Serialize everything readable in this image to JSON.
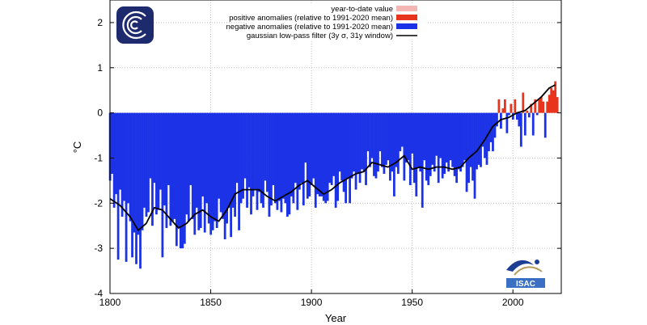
{
  "chart_data": {
    "type": "bar",
    "xlabel": "Year",
    "ylabel": "°C",
    "xlim": [
      1800,
      2024
    ],
    "ylim": [
      -4,
      2.5
    ],
    "x_ticks": [
      1800,
      1850,
      1900,
      1950,
      2000
    ],
    "y_ticks": [
      -4,
      -3,
      -2,
      -1,
      0,
      1,
      2
    ],
    "grid": true,
    "legend_position": "top-right",
    "legend": [
      {
        "label": "year-to-date value",
        "color": "#f4b6b2",
        "kind": "box"
      },
      {
        "label": "positive anomalies (relative to 1991-2020 mean)",
        "color": "#e8341c",
        "kind": "box"
      },
      {
        "label": "negative anomalies (relative to 1991-2020 mean)",
        "color": "#1c32e6",
        "kind": "box"
      },
      {
        "label": "gaussian low-pass filter (3y σ, 31y window)",
        "color": "#000000",
        "kind": "line"
      }
    ],
    "colors": {
      "positive": "#e8341c",
      "negative": "#1c32e6",
      "ytd": "#f4b6b2",
      "smooth": "#000000",
      "grid": "#b4b4b4"
    },
    "years": [
      1800,
      1801,
      1802,
      1803,
      1804,
      1805,
      1806,
      1807,
      1808,
      1809,
      1810,
      1811,
      1812,
      1813,
      1814,
      1815,
      1816,
      1817,
      1818,
      1819,
      1820,
      1821,
      1822,
      1823,
      1824,
      1825,
      1826,
      1827,
      1828,
      1829,
      1830,
      1831,
      1832,
      1833,
      1834,
      1835,
      1836,
      1837,
      1838,
      1839,
      1840,
      1841,
      1842,
      1843,
      1844,
      1845,
      1846,
      1847,
      1848,
      1849,
      1850,
      1851,
      1852,
      1853,
      1854,
      1855,
      1856,
      1857,
      1858,
      1859,
      1860,
      1861,
      1862,
      1863,
      1864,
      1865,
      1866,
      1867,
      1868,
      1869,
      1870,
      1871,
      1872,
      1873,
      1874,
      1875,
      1876,
      1877,
      1878,
      1879,
      1880,
      1881,
      1882,
      1883,
      1884,
      1885,
      1886,
      1887,
      1888,
      1889,
      1890,
      1891,
      1892,
      1893,
      1894,
      1895,
      1896,
      1897,
      1898,
      1899,
      1900,
      1901,
      1902,
      1903,
      1904,
      1905,
      1906,
      1907,
      1908,
      1909,
      1910,
      1911,
      1912,
      1913,
      1914,
      1915,
      1916,
      1917,
      1918,
      1919,
      1920,
      1921,
      1922,
      1923,
      1924,
      1925,
      1926,
      1927,
      1928,
      1929,
      1930,
      1931,
      1932,
      1933,
      1934,
      1935,
      1936,
      1937,
      1938,
      1939,
      1940,
      1941,
      1942,
      1943,
      1944,
      1945,
      1946,
      1947,
      1948,
      1949,
      1950,
      1951,
      1952,
      1953,
      1954,
      1955,
      1956,
      1957,
      1958,
      1959,
      1960,
      1961,
      1962,
      1963,
      1964,
      1965,
      1966,
      1967,
      1968,
      1969,
      1970,
      1971,
      1972,
      1973,
      1974,
      1975,
      1976,
      1977,
      1978,
      1979,
      1980,
      1981,
      1982,
      1983,
      1984,
      1985,
      1986,
      1987,
      1988,
      1989,
      1990,
      1991,
      1992,
      1993,
      1994,
      1995,
      1996,
      1997,
      1998,
      1999,
      2000,
      2001,
      2002,
      2003,
      2004,
      2005,
      2006,
      2007,
      2008,
      2009,
      2010,
      2011,
      2012,
      2013,
      2014,
      2015,
      2016,
      2017,
      2018,
      2019,
      2020,
      2021,
      2022
    ],
    "anomalies": [
      -1.5,
      -1.35,
      -2.1,
      -1.8,
      -3.25,
      -1.7,
      -2.3,
      -1.95,
      -3.3,
      -2.0,
      -2.4,
      -3.2,
      -2.65,
      -3.35,
      -2.7,
      -3.45,
      -2.6,
      -2.1,
      -2.3,
      -2.2,
      -1.45,
      -2.5,
      -1.55,
      -2.25,
      -2.15,
      -1.7,
      -3.2,
      -2.05,
      -2.55,
      -1.6,
      -2.5,
      -2.4,
      -2.35,
      -2.95,
      -2.55,
      -3.0,
      -3.0,
      -2.9,
      -2.25,
      -2.4,
      -1.6,
      -2.35,
      -2.7,
      -2.1,
      -2.6,
      -2.55,
      -1.85,
      -2.65,
      -2.0,
      -2.45,
      -2.7,
      -2.6,
      -2.4,
      -2.55,
      -1.9,
      -2.2,
      -2.35,
      -2.8,
      -2.45,
      -2.1,
      -2.75,
      -2.1,
      -2.3,
      -1.55,
      -2.6,
      -2.0,
      -1.9,
      -1.45,
      -2.1,
      -1.65,
      -2.25,
      -1.85,
      -1.7,
      -2.15,
      -1.75,
      -2.0,
      -2.1,
      -1.5,
      -1.75,
      -2.3,
      -2.05,
      -1.6,
      -2.0,
      -2.15,
      -1.95,
      -2.2,
      -1.9,
      -2.0,
      -2.3,
      -2.25,
      -1.85,
      -2.0,
      -1.55,
      -2.15,
      -1.7,
      -1.55,
      -2.05,
      -1.1,
      -1.9,
      -1.85,
      -1.6,
      -1.45,
      -2.1,
      -1.8,
      -1.85,
      -1.85,
      -1.95,
      -2.0,
      -1.95,
      -1.55,
      -1.6,
      -1.4,
      -2.1,
      -1.95,
      -1.3,
      -1.5,
      -1.75,
      -2.0,
      -1.45,
      -2.0,
      -1.45,
      -1.3,
      -1.7,
      -1.35,
      -1.55,
      -1.25,
      -1.3,
      -1.6,
      -0.85,
      -1.2,
      -1.0,
      -1.4,
      -1.45,
      -1.3,
      -0.85,
      -1.2,
      -1.35,
      -1.15,
      -1.05,
      -1.5,
      -1.3,
      -1.85,
      -1.2,
      -1.35,
      -0.85,
      -0.75,
      -1.5,
      -1.1,
      -1.05,
      -1.6,
      -0.9,
      -1.55,
      -1.85,
      -1.2,
      -1.3,
      -2.1,
      -1.05,
      -1.5,
      -1.6,
      -1.4,
      -1.15,
      -1.3,
      -0.95,
      -1.55,
      -1.0,
      -1.45,
      -1.35,
      -1.1,
      -1.3,
      -1.05,
      -1.2,
      -1.4,
      -1.55,
      -1.25,
      -1.3,
      -1.2,
      -1.05,
      -1.75,
      -1.55,
      -1.2,
      -1.5,
      -1.9,
      -1.25,
      -1.15,
      -1.2,
      -0.75,
      -1.0,
      -1.15,
      -0.85,
      -0.65,
      -0.85,
      -0.55,
      -0.3,
      0.3,
      -0.35,
      0.1,
      0.3,
      -0.45,
      -0.05,
      0.2,
      -0.15,
      0.3,
      -0.15,
      -0.3,
      -0.75,
      0.45,
      -0.5,
      0.05,
      -0.1,
      0.2,
      -0.5,
      0.3,
      -0.05,
      0.3,
      0.35,
      0.25,
      -0.55,
      0.25,
      0.4,
      0.55,
      0.5,
      0.7,
      0.35,
      0.6,
      0.45,
      1.15
    ],
    "ytd_year": 2022,
    "smoothed": [
      [
        1800,
        -1.9
      ],
      [
        1805,
        -2.05
      ],
      [
        1810,
        -2.3
      ],
      [
        1814,
        -2.6
      ],
      [
        1818,
        -2.45
      ],
      [
        1822,
        -2.1
      ],
      [
        1826,
        -2.15
      ],
      [
        1830,
        -2.35
      ],
      [
        1834,
        -2.55
      ],
      [
        1838,
        -2.45
      ],
      [
        1842,
        -2.25
      ],
      [
        1846,
        -2.15
      ],
      [
        1850,
        -2.3
      ],
      [
        1854,
        -2.4
      ],
      [
        1858,
        -2.15
      ],
      [
        1862,
        -1.8
      ],
      [
        1866,
        -1.7
      ],
      [
        1870,
        -1.7
      ],
      [
        1874,
        -1.7
      ],
      [
        1878,
        -1.85
      ],
      [
        1882,
        -1.95
      ],
      [
        1886,
        -1.85
      ],
      [
        1890,
        -1.75
      ],
      [
        1894,
        -1.6
      ],
      [
        1898,
        -1.5
      ],
      [
        1902,
        -1.65
      ],
      [
        1906,
        -1.8
      ],
      [
        1910,
        -1.7
      ],
      [
        1914,
        -1.55
      ],
      [
        1918,
        -1.45
      ],
      [
        1922,
        -1.35
      ],
      [
        1926,
        -1.3
      ],
      [
        1930,
        -1.1
      ],
      [
        1934,
        -1.15
      ],
      [
        1938,
        -1.2
      ],
      [
        1942,
        -1.1
      ],
      [
        1946,
        -0.95
      ],
      [
        1950,
        -1.25
      ],
      [
        1954,
        -1.2
      ],
      [
        1958,
        -1.25
      ],
      [
        1962,
        -1.2
      ],
      [
        1966,
        -1.2
      ],
      [
        1970,
        -1.25
      ],
      [
        1974,
        -1.2
      ],
      [
        1978,
        -1.0
      ],
      [
        1982,
        -0.85
      ],
      [
        1986,
        -0.6
      ],
      [
        1990,
        -0.3
      ],
      [
        1994,
        -0.15
      ],
      [
        1998,
        -0.1
      ],
      [
        2002,
        0.0
      ],
      [
        2006,
        0.05
      ],
      [
        2010,
        0.2
      ],
      [
        2014,
        0.35
      ],
      [
        2018,
        0.55
      ],
      [
        2021,
        0.62
      ]
    ]
  }
}
